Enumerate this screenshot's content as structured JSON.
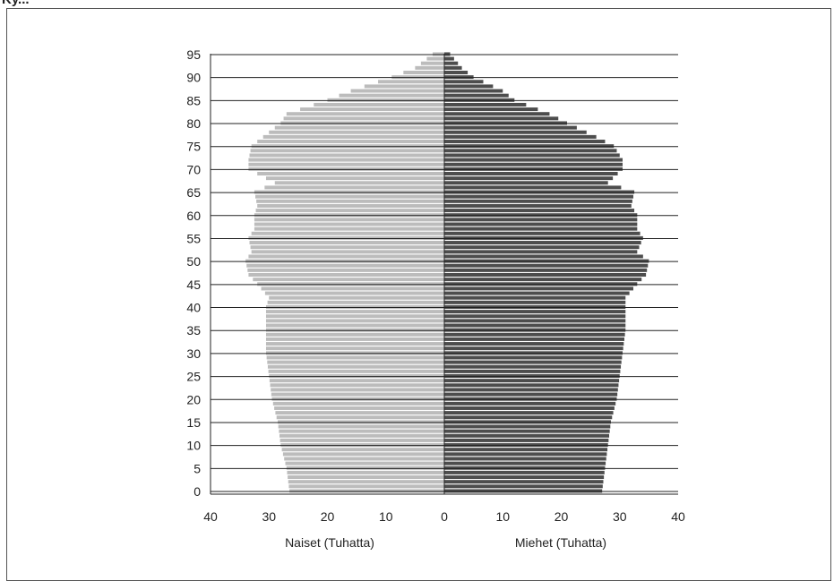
{
  "header": {
    "fragment": "Ky..."
  },
  "chart_data": {
    "type": "bar",
    "orientation": "horizontal",
    "subtype": "population-pyramid",
    "xlabel_left": "Naiset (Tuhatta)",
    "xlabel_right": "Miehet (Tuhatta)",
    "x_ticks_left": [
      "40",
      "30",
      "20",
      "10",
      "0"
    ],
    "x_ticks_right": [
      "0",
      "10",
      "20",
      "30",
      "40"
    ],
    "y_ticks": [
      "0",
      "5",
      "10",
      "15",
      "20",
      "25",
      "30",
      "35",
      "40",
      "45",
      "50",
      "55",
      "60",
      "65",
      "70",
      "75",
      "80",
      "85",
      "90",
      "95"
    ],
    "xlim": [
      0,
      40
    ],
    "ylim": [
      0,
      95
    ],
    "grid": "horizontal",
    "colors": {
      "naiset": "#bcbcbc",
      "miehet": "#4d4d4d",
      "grid": "#222222"
    },
    "series": [
      {
        "name": "Naiset (Tuhatta)",
        "side": "left",
        "ages": [
          0,
          5,
          10,
          15,
          20,
          25,
          30,
          35,
          40,
          42,
          45,
          47,
          50,
          52,
          55,
          57,
          60,
          62,
          65,
          67,
          70,
          72,
          75,
          77,
          80,
          82,
          85,
          87,
          90,
          92,
          95
        ],
        "values": [
          26.5,
          27.0,
          28.0,
          28.5,
          29.5,
          30.0,
          30.5,
          30.5,
          30.5,
          30.0,
          32.0,
          33.5,
          34.0,
          33.0,
          33.5,
          32.5,
          32.5,
          32.0,
          32.5,
          29.0,
          33.5,
          33.5,
          33.0,
          31.0,
          28.0,
          27.0,
          20.0,
          16.0,
          9.0,
          5.0,
          2.0
        ]
      },
      {
        "name": "Miehet (Tuhatta)",
        "side": "right",
        "ages": [
          0,
          5,
          10,
          15,
          20,
          25,
          30,
          35,
          40,
          42,
          45,
          47,
          50,
          52,
          55,
          57,
          60,
          62,
          65,
          67,
          70,
          72,
          75,
          77,
          80,
          82,
          85,
          87,
          90,
          92,
          95
        ],
        "values": [
          27.0,
          27.5,
          28.0,
          28.5,
          29.5,
          30.0,
          30.5,
          31.0,
          31.0,
          31.0,
          33.0,
          34.5,
          35.0,
          33.0,
          34.0,
          33.0,
          33.0,
          32.0,
          32.5,
          28.0,
          30.5,
          30.5,
          29.0,
          26.0,
          21.0,
          18.0,
          12.0,
          10.0,
          5.0,
          3.0,
          1.0
        ]
      }
    ]
  }
}
